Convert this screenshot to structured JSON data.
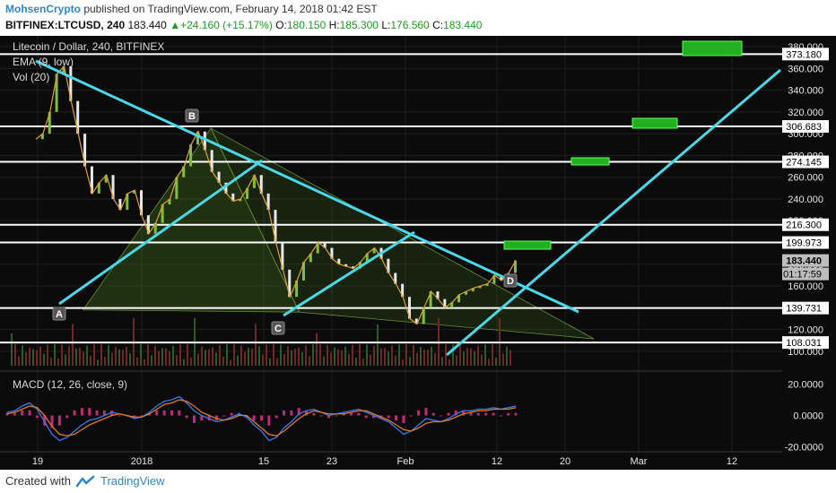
{
  "header": {
    "author": "MohsenCrypto",
    "published": " published on TradingView.com, February 14, 2018 01:42 EST",
    "symbol": "BITFINEX:LTCUSD, 240",
    "last": "183.440",
    "change_arrow": "▲",
    "change": "+24.160 (+15.17%)",
    "o_label": "O:",
    "o": "180.150",
    "h_label": "H:",
    "h": "185.300",
    "l_label": "L:",
    "l": "176.560",
    "c_label": "C:",
    "c": "183.440"
  },
  "footer": {
    "created_with": "Created with",
    "brand": "TradingView"
  },
  "chart_data": {
    "type": "line",
    "title": "Litecoin / Dollar, 240, BITFINEX",
    "indicators": [
      "EMA (9, low)",
      "Vol (20)"
    ],
    "price_ylim": [
      90,
      385
    ],
    "x_tick_labels": [
      "19",
      "2018",
      "15",
      "23",
      "Feb",
      "12",
      "20",
      "Mar",
      "12"
    ],
    "y_tick_labels": [
      "380.000",
      "360.000",
      "340.000",
      "320.000",
      "300.000",
      "280.000",
      "260.000",
      "240.000",
      "220.000",
      "200.000",
      "180.000",
      "160.000",
      "140.000",
      "120.000",
      "100.000"
    ],
    "price_series": [
      {
        "t": 0,
        "v": 295
      },
      {
        "t": 1,
        "v": 300
      },
      {
        "t": 2,
        "v": 320
      },
      {
        "t": 3,
        "v": 355
      },
      {
        "t": 4,
        "v": 362
      },
      {
        "t": 5,
        "v": 330
      },
      {
        "t": 6,
        "v": 300
      },
      {
        "t": 7,
        "v": 270
      },
      {
        "t": 8,
        "v": 245
      },
      {
        "t": 9,
        "v": 255
      },
      {
        "t": 10,
        "v": 262
      },
      {
        "t": 11,
        "v": 240
      },
      {
        "t": 12,
        "v": 230
      },
      {
        "t": 13,
        "v": 245
      },
      {
        "t": 14,
        "v": 248
      },
      {
        "t": 15,
        "v": 225
      },
      {
        "t": 16,
        "v": 208
      },
      {
        "t": 17,
        "v": 218
      },
      {
        "t": 18,
        "v": 235
      },
      {
        "t": 19,
        "v": 240
      },
      {
        "t": 20,
        "v": 260
      },
      {
        "t": 21,
        "v": 270
      },
      {
        "t": 22,
        "v": 290
      },
      {
        "t": 23,
        "v": 302
      },
      {
        "t": 24,
        "v": 285
      },
      {
        "t": 25,
        "v": 265
      },
      {
        "t": 26,
        "v": 255
      },
      {
        "t": 27,
        "v": 245
      },
      {
        "t": 28,
        "v": 238
      },
      {
        "t": 29,
        "v": 240
      },
      {
        "t": 30,
        "v": 250
      },
      {
        "t": 31,
        "v": 262
      },
      {
        "t": 32,
        "v": 245
      },
      {
        "t": 33,
        "v": 230
      },
      {
        "t": 34,
        "v": 200
      },
      {
        "t": 35,
        "v": 175
      },
      {
        "t": 36,
        "v": 150
      },
      {
        "t": 37,
        "v": 165
      },
      {
        "t": 38,
        "v": 182
      },
      {
        "t": 39,
        "v": 190
      },
      {
        "t": 40,
        "v": 200
      },
      {
        "t": 41,
        "v": 195
      },
      {
        "t": 42,
        "v": 185
      },
      {
        "t": 43,
        "v": 180
      },
      {
        "t": 44,
        "v": 178
      },
      {
        "t": 45,
        "v": 176
      },
      {
        "t": 46,
        "v": 182
      },
      {
        "t": 47,
        "v": 190
      },
      {
        "t": 48,
        "v": 195
      },
      {
        "t": 49,
        "v": 185
      },
      {
        "t": 50,
        "v": 172
      },
      {
        "t": 51,
        "v": 162
      },
      {
        "t": 52,
        "v": 150
      },
      {
        "t": 53,
        "v": 130
      },
      {
        "t": 54,
        "v": 125
      },
      {
        "t": 55,
        "v": 140
      },
      {
        "t": 56,
        "v": 155
      },
      {
        "t": 57,
        "v": 148
      },
      {
        "t": 58,
        "v": 140
      },
      {
        "t": 59,
        "v": 145
      },
      {
        "t": 60,
        "v": 152
      },
      {
        "t": 61,
        "v": 155
      },
      {
        "t": 62,
        "v": 158
      },
      {
        "t": 63,
        "v": 160
      },
      {
        "t": 64,
        "v": 162
      },
      {
        "t": 65,
        "v": 170
      },
      {
        "t": 66,
        "v": 165
      },
      {
        "t": 67,
        "v": 172
      },
      {
        "t": 68,
        "v": 183.44
      }
    ],
    "horizontal_levels": [
      {
        "label": "373.180",
        "v": 373.18
      },
      {
        "label": "306.683",
        "v": 306.683
      },
      {
        "label": "274.145",
        "v": 274.145
      },
      {
        "label": "216.300",
        "v": 216.3
      },
      {
        "label": "199.973",
        "v": 199.973
      },
      {
        "label": "139.731",
        "v": 139.731
      },
      {
        "label": "108.031",
        "v": 108.031
      }
    ],
    "price_label": "183.440",
    "countdown_label": "01:17:59",
    "points": [
      {
        "name": "A",
        "t": 8,
        "v": 138
      },
      {
        "name": "B",
        "t": 26,
        "v": 305
      },
      {
        "name": "C",
        "t": 39,
        "v": 136
      },
      {
        "name": "D",
        "t": 72,
        "v": 170
      }
    ],
    "macd_title": "MACD (12, 26, close, 9)",
    "macd_ylim": [
      -0.022,
      0.026
    ],
    "macd_tick_labels": [
      "20.0000",
      "0.0000",
      "-20.0000"
    ],
    "macd_series": [
      0.002,
      0.003,
      0.006,
      0.008,
      0.004,
      -0.004,
      -0.012,
      -0.016,
      -0.014,
      -0.01,
      -0.006,
      -0.003,
      -0.002,
      0,
      0.002,
      0.001,
      0,
      -0.002,
      -0.001,
      0.002,
      0.006,
      0.009,
      0.01,
      0.012,
      0.008,
      0.003,
      0,
      -0.002,
      -0.004,
      -0.003,
      -0.001,
      0.001,
      -0.001,
      -0.006,
      -0.01,
      -0.016,
      -0.014,
      -0.008,
      -0.004,
      0.001,
      0.003,
      0.004,
      0.002,
      0.0,
      0.001,
      0.002,
      0.003,
      0.004,
      0.002,
      0.0,
      -0.002,
      -0.004,
      -0.008,
      -0.012,
      -0.01,
      -0.006,
      -0.002,
      -0.003,
      -0.004,
      -0.002,
      0.001,
      0.003,
      0.003,
      0.004,
      0.004,
      0.005,
      0.004,
      0.005,
      0.006
    ],
    "signal_series": [
      0.001,
      0.002,
      0.004,
      0.006,
      0.005,
      0.0,
      -0.007,
      -0.012,
      -0.013,
      -0.012,
      -0.009,
      -0.006,
      -0.004,
      -0.002,
      0.0,
      0.001,
      0.0,
      -0.001,
      -0.001,
      0.001,
      0.004,
      0.007,
      0.008,
      0.01,
      0.009,
      0.006,
      0.002,
      0.0,
      -0.002,
      -0.003,
      -0.002,
      0.0,
      -0.0,
      -0.004,
      -0.008,
      -0.012,
      -0.013,
      -0.01,
      -0.006,
      -0.002,
      0.001,
      0.003,
      0.002,
      0.001,
      0.001,
      0.001,
      0.002,
      0.003,
      0.003,
      0.001,
      -0.001,
      -0.003,
      -0.006,
      -0.009,
      -0.01,
      -0.008,
      -0.005,
      -0.004,
      -0.004,
      -0.003,
      -0.001,
      0.001,
      0.002,
      0.003,
      0.003,
      0.004,
      0.004,
      0.004,
      0.005
    ]
  }
}
